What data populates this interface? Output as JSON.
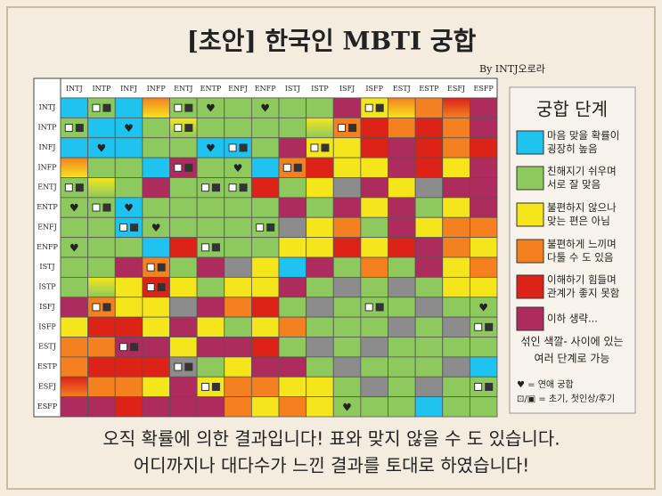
{
  "title": "[초안] 한국인 MBTI 궁합",
  "byline": "By INTJ오로라",
  "grid": {
    "types": [
      "INTJ",
      "INTP",
      "INFJ",
      "INFP",
      "ENTJ",
      "ENTP",
      "ENFJ",
      "ENFP",
      "ISTJ",
      "ISTP",
      "ISFJ",
      "ISFP",
      "ESTJ",
      "ESTP",
      "ESFJ",
      "ESFP"
    ],
    "cells": [
      [
        "#1fc3ef",
        "#8dc95d",
        "#1fc3ef",
        [
          "#f4801f",
          "#f5e61c"
        ],
        "#8dc95d",
        "#8dc95d",
        "#8dc95d",
        "#8dc95d",
        "#8dc95d",
        "#8dc95d",
        "#ad2c5d",
        "#f5e61c",
        [
          "#f4801f",
          "#f5e61c"
        ],
        "#f4801f",
        [
          "#dd2318",
          "#f4801f"
        ],
        "#ad2c5d"
      ],
      [
        "#8dc95d",
        "#1fc3ef",
        "#1fc3ef",
        "#8dc95d",
        [
          "#f5e61c",
          "#8dc95d"
        ],
        "#8dc95d",
        "#8dc95d",
        "#8dc95d",
        "#8dc95d",
        [
          "#f5e61c",
          "#8dc95d"
        ],
        "#f4801f",
        "#dd2318",
        "#f4801f",
        "#dd2318",
        "#f4801f",
        "#ad2c5d"
      ],
      [
        "#1fc3ef",
        "#1fc3ef",
        "#1fc3ef",
        "#8dc95d",
        "#8dc95d",
        "#1fc3ef",
        "#1fc3ef",
        "#8dc95d",
        "#ad2c5d",
        "#f5e61c",
        "#f5e61c",
        "#dd2318",
        "#ad2c5d",
        "#dd2318",
        "#f4801f",
        "#dd2318"
      ],
      [
        [
          "#f4801f",
          "#f5e61c"
        ],
        "#8dc95d",
        "#8dc95d",
        "#1fc3ef",
        "#ad2c5d",
        "#8dc95d",
        "#8dc95d",
        "#1fc3ef",
        "#f4801f",
        "#dd2318",
        "#f5e61c",
        "#f5e61c",
        "#ad2c5d",
        "#dd2318",
        "#f5e61c",
        "#ad2c5d"
      ],
      [
        "#8dc95d",
        [
          "#f5e61c",
          "#8dc95d"
        ],
        "#8dc95d",
        "#ad2c5d",
        "#8dc95d",
        "#8dc95d",
        "#8dc95d",
        "#dd2318",
        "#8dc95d",
        "#f5e61c",
        "#8c8c8c",
        "#ad2c5d",
        "#f5e61c",
        "#8c8c8c",
        "#ad2c5d",
        "#ad2c5d"
      ],
      [
        "#8dc95d",
        "#8dc95d",
        "#1fc3ef",
        "#8dc95d",
        "#8dc95d",
        "#8dc95d",
        "#8dc95d",
        "#8dc95d",
        "#ad2c5d",
        "#8dc95d",
        "#ad2c5d",
        "#f5e61c",
        "#ad2c5d",
        "#8dc95d",
        "#f5e61c",
        "#ad2c5d"
      ],
      [
        "#8dc95d",
        "#8dc95d",
        "#1fc3ef",
        "#8dc95d",
        "#8dc95d",
        "#8dc95d",
        "#8dc95d",
        "#8dc95d",
        "#8c8c8c",
        "#f5e61c",
        "#f4801f",
        "#8dc95d",
        "#ad2c5d",
        "#f5e61c",
        "#f4801f",
        "#f4801f"
      ],
      [
        "#8dc95d",
        "#8dc95d",
        "#8dc95d",
        "#1fc3ef",
        "#dd2318",
        "#8dc95d",
        "#8dc95d",
        "#8dc95d",
        "#f5e61c",
        "#f5e61c",
        "#dd2318",
        "#f5e61c",
        "#dd2318",
        "#ad2c5d",
        "#f4801f",
        "#f5e61c"
      ],
      [
        "#8dc95d",
        "#8dc95d",
        "#ad2c5d",
        "#f4801f",
        "#8dc95d",
        "#ad2c5d",
        "#8c8c8c",
        "#f5e61c",
        "#1fc3ef",
        "#ad2c5d",
        "#8dc95d",
        "#f4801f",
        "#8dc95d",
        "#ad2c5d",
        "#f5e61c",
        "#f4801f"
      ],
      [
        "#8dc95d",
        [
          "#f5e61c",
          "#8dc95d"
        ],
        "#f5e61c",
        "#dd2318",
        "#f5e61c",
        "#8dc95d",
        "#f5e61c",
        "#f5e61c",
        "#ad2c5d",
        "#8dc95d",
        "#8c8c8c",
        "#8dc95d",
        "#8c8c8c",
        "#8dc95d",
        "#f5e61c",
        "#f5e61c"
      ],
      [
        "#ad2c5d",
        "#f4801f",
        "#f5e61c",
        "#f5e61c",
        "#8c8c8c",
        "#ad2c5d",
        "#f4801f",
        "#dd2318",
        "#8dc95d",
        "#8c8c8c",
        "#8dc95d",
        "#8dc95d",
        "#8dc95d",
        "#8c8c8c",
        "#8dc95d",
        "#8dc95d"
      ],
      [
        "#f5e61c",
        "#dd2318",
        "#dd2318",
        "#f5e61c",
        "#ad2c5d",
        "#f5e61c",
        "#8dc95d",
        "#f5e61c",
        "#f4801f",
        "#8dc95d",
        "#8dc95d",
        "#8dc95d",
        "#8c8c8c",
        "#8dc95d",
        "#8c8c8c",
        "#8dc95d"
      ],
      [
        "#f4801f",
        "#f4801f",
        "#ad2c5d",
        "#ad2c5d",
        "#f5e61c",
        "#ad2c5d",
        "#ad2c5d",
        "#dd2318",
        "#8dc95d",
        "#8c8c8c",
        "#8dc95d",
        "#8c8c8c",
        "#8dc95d",
        "#8dc95d",
        "#8dc95d",
        "#8dc95d"
      ],
      [
        "#f4801f",
        "#dd2318",
        "#dd2318",
        "#dd2318",
        "#8c8c8c",
        "#8dc95d",
        "#f5e61c",
        "#ad2c5d",
        "#ad2c5d",
        "#8dc95d",
        "#8c8c8c",
        "#8dc95d",
        "#8dc95d",
        "#8dc95d",
        "#8c8c8c",
        "#1fc3ef"
      ],
      [
        [
          "#dd2318",
          "#f4801f"
        ],
        "#f4801f",
        "#f4801f",
        "#f5e61c",
        "#ad2c5d",
        "#f5e61c",
        "#f4801f",
        "#f4801f",
        "#f5e61c",
        "#f5e61c",
        "#8dc95d",
        "#8c8c8c",
        "#8dc95d",
        "#8c8c8c",
        "#8dc95d",
        "#8dc95d"
      ],
      [
        "#ad2c5d",
        "#ad2c5d",
        "#dd2318",
        "#ad2c5d",
        "#ad2c5d",
        "#ad2c5d",
        "#f4801f",
        "#f5e61c",
        "#f4801f",
        "#f5e61c",
        "#8dc95d",
        "#8dc95d",
        "#8dc95d",
        "#1fc3ef",
        "#8dc95d",
        "#8dc95d"
      ]
    ],
    "heart": "♥",
    "hearts": [
      [
        0,
        5
      ],
      [
        0,
        7
      ],
      [
        1,
        2
      ],
      [
        2,
        1
      ],
      [
        2,
        5
      ],
      [
        3,
        6
      ],
      [
        5,
        0
      ],
      [
        5,
        2
      ],
      [
        6,
        3
      ],
      [
        7,
        0
      ],
      [
        10,
        15
      ],
      [
        15,
        10
      ]
    ],
    "icons": [
      [
        0,
        1
      ],
      [
        0,
        4
      ],
      [
        0,
        11
      ],
      [
        1,
        0
      ],
      [
        1,
        4
      ],
      [
        1,
        10
      ],
      [
        2,
        6
      ],
      [
        2,
        9
      ],
      [
        3,
        4
      ],
      [
        3,
        8
      ],
      [
        4,
        0
      ],
      [
        4,
        5
      ],
      [
        4,
        6
      ],
      [
        5,
        1
      ],
      [
        6,
        2
      ],
      [
        6,
        7
      ],
      [
        7,
        5
      ],
      [
        8,
        3
      ],
      [
        9,
        3
      ],
      [
        10,
        1
      ],
      [
        10,
        11
      ],
      [
        11,
        15
      ],
      [
        12,
        2
      ],
      [
        13,
        4
      ],
      [
        14,
        5
      ],
      [
        14,
        15
      ]
    ]
  },
  "legend": {
    "title": "궁합 단계",
    "levels": [
      {
        "color": "#1fc3ef",
        "lines": [
          "마음 맞을 확률이",
          "굉장히 높음"
        ]
      },
      {
        "color": "#8dc95d",
        "lines": [
          "친해지기 쉬우며",
          "서로 잘 맞음"
        ]
      },
      {
        "color": "#f5e61c",
        "lines": [
          "불편하지 않으나",
          "맞는 편은 아님"
        ]
      },
      {
        "color": "#f4801f",
        "lines": [
          "불편하게 느끼며",
          "다툴 수 도 있음"
        ]
      },
      {
        "color": "#dd2318",
        "lines": [
          "이해하기 힘들며",
          "관계가 좋지 못함"
        ]
      },
      {
        "color": "#ad2c5d",
        "lines": [
          "이하 생략..."
        ]
      }
    ],
    "mixed": [
      "섞인 색깔- 사이에 있는",
      "여러 단계로 가능"
    ],
    "heart_note": "♥ = 연애 궁합",
    "icon_note": "⊡/▣ = 초기, 첫인상/후기"
  },
  "footer": [
    "오직 확률에 의한 결과입니다! 표와 맞지 않을 수 도 있습니다.",
    "어디까지나 대다수가 느낀 결과를 토대로 하였습니다!"
  ]
}
